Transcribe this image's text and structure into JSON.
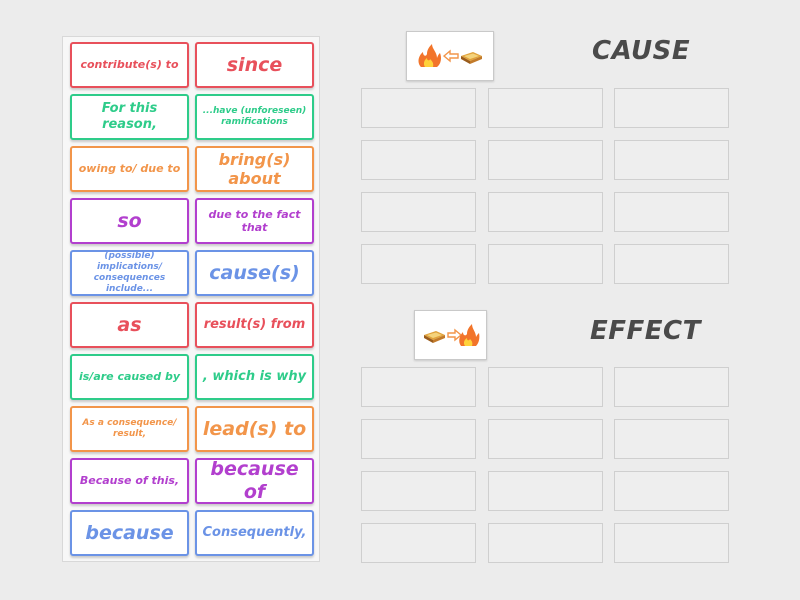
{
  "tiles": [
    {
      "text": "contribute(s) to",
      "color": "red",
      "size": "s"
    },
    {
      "text": "since",
      "color": "red",
      "size": "xl"
    },
    {
      "text": "For this reason,",
      "color": "green",
      "size": "m"
    },
    {
      "text": "...have (unforeseen) ramifications",
      "color": "green",
      "size": "xs"
    },
    {
      "text": "owing to/ due to",
      "color": "orange",
      "size": "s"
    },
    {
      "text": "bring(s) about",
      "color": "orange",
      "size": "l"
    },
    {
      "text": "so",
      "color": "purple",
      "size": "xl"
    },
    {
      "text": "due to the fact that",
      "color": "purple",
      "size": "s"
    },
    {
      "text": "(possible) implications/ consequences include...",
      "color": "blue",
      "size": "xs"
    },
    {
      "text": "cause(s)",
      "color": "blue",
      "size": "xl"
    },
    {
      "text": "as",
      "color": "red",
      "size": "xl"
    },
    {
      "text": "result(s) from",
      "color": "red",
      "size": "m"
    },
    {
      "text": "is/are caused by",
      "color": "green",
      "size": "s"
    },
    {
      "text": ", which is why",
      "color": "green",
      "size": "m"
    },
    {
      "text": "As a consequence/ result,",
      "color": "orange",
      "size": "xs"
    },
    {
      "text": "lead(s) to",
      "color": "orange",
      "size": "xl"
    },
    {
      "text": "Because of this,",
      "color": "purple",
      "size": "s"
    },
    {
      "text": "because of",
      "color": "purple",
      "size": "xl"
    },
    {
      "text": "because",
      "color": "blue",
      "size": "xl"
    },
    {
      "text": "Consequently,",
      "color": "blue",
      "size": "m"
    }
  ],
  "groups": {
    "cause": {
      "label": "CAUSE",
      "icon": "fire-from-book-icon"
    },
    "effect": {
      "label": "EFFECT",
      "icon": "book-to-fire-icon"
    }
  },
  "colors": {
    "red": "#e8505b",
    "green": "#2ecc8a",
    "orange": "#f2954a",
    "purple": "#b23fce",
    "blue": "#6b93e6",
    "heading": "#4a4a4a"
  }
}
